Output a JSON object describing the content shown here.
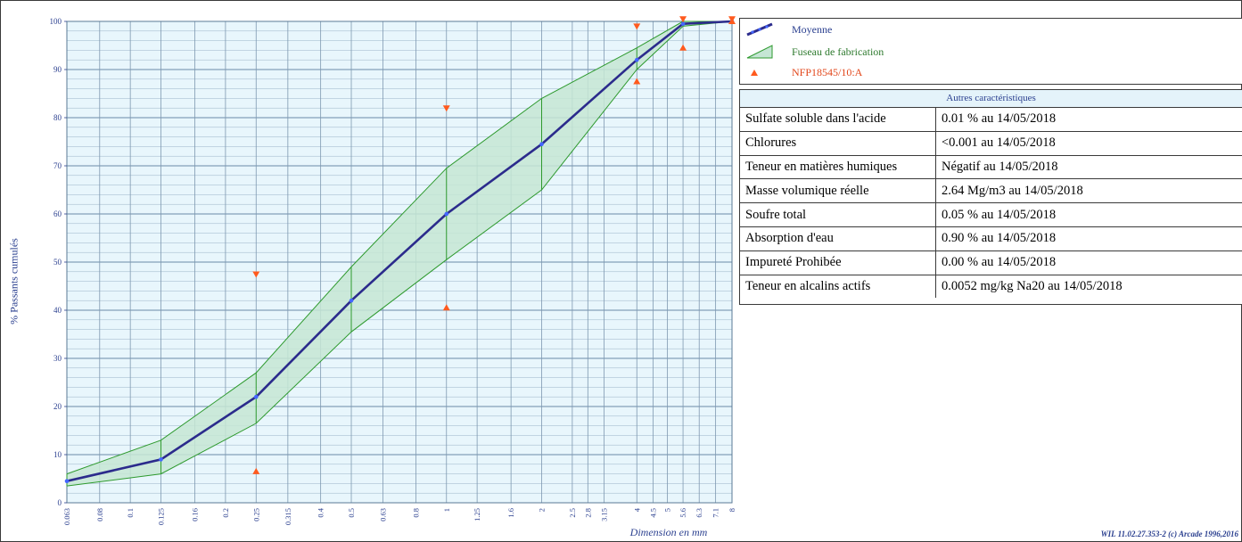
{
  "chart_data": {
    "type": "line",
    "ylabel": "% Passants cumulés",
    "xlabel": "Dimension en mm",
    "ylim": [
      0,
      100
    ],
    "yticks": [
      0,
      10,
      20,
      30,
      40,
      50,
      60,
      70,
      80,
      90,
      100
    ],
    "xscale": "log",
    "xticks": [
      "0.063",
      "0.08",
      "0.1",
      "0.125",
      "0.16",
      "0.2",
      "0.25",
      "0.315",
      "0.4",
      "0.5",
      "0.63",
      "0.8",
      "1",
      "1.25",
      "1.6",
      "2",
      "2.5",
      "2.8",
      "3.15",
      "4",
      "4.5",
      "5",
      "5.6",
      "6.3",
      "7.1",
      "8"
    ],
    "grid": true,
    "legend_position": "right",
    "series": [
      {
        "name": "Moyenne",
        "color": "#2b2b8c",
        "x": [
          0.063,
          0.125,
          0.25,
          0.5,
          1,
          2,
          4,
          5.6,
          8
        ],
        "y": [
          4.5,
          9,
          22,
          42,
          60,
          74.5,
          92,
          99.5,
          100
        ]
      },
      {
        "name": "Fuseau de fabrication",
        "color": "#2e9a2e",
        "x": [
          0.063,
          0.125,
          0.25,
          0.5,
          1,
          2,
          4,
          5.6,
          8
        ],
        "lower": [
          3.5,
          6,
          16.5,
          35.5,
          50.5,
          65,
          90,
          99,
          100
        ],
        "upper": [
          6,
          13,
          27,
          49,
          69.5,
          84,
          94.5,
          100,
          100
        ]
      },
      {
        "name": "NFP18545/10:A",
        "color": "#ff5a1e",
        "lower_points": [
          [
            0.25,
            6.5
          ],
          [
            1,
            40.5
          ],
          [
            4,
            87.5
          ],
          [
            5.6,
            94.5
          ],
          [
            8,
            100
          ]
        ],
        "upper_points": [
          [
            0.25,
            47.5
          ],
          [
            1,
            82
          ],
          [
            4,
            99
          ],
          [
            5.6,
            100.5
          ],
          [
            8,
            100.5
          ]
        ]
      }
    ]
  },
  "table": {
    "title": "Autres caractéristiques",
    "rows": [
      {
        "label": "Sulfate soluble dans l'acide",
        "value": "0.01 % au 14/05/2018"
      },
      {
        "label": "Chlorures",
        "value": "<0.001 au 14/05/2018"
      },
      {
        "label": "Teneur en matières humiques",
        "value": "Négatif au 14/05/2018"
      },
      {
        "label": "Masse volumique réelle",
        "value": "2.64 Mg/m3 au 14/05/2018"
      },
      {
        "label": "Soufre total",
        "value": "0.05 % au 14/05/2018"
      },
      {
        "label": "Absorption d'eau",
        "value": "0.90 % au 14/05/2018"
      },
      {
        "label": "Impureté Prohibée",
        "value": "0.00 % au 14/05/2018"
      },
      {
        "label": "Teneur en alcalins actifs",
        "value": "0.0052 mg/kg Na20 au 14/05/2018"
      }
    ]
  },
  "footer": "WIL 11.02.27.353-2 (c) Arcade 1996,2016"
}
